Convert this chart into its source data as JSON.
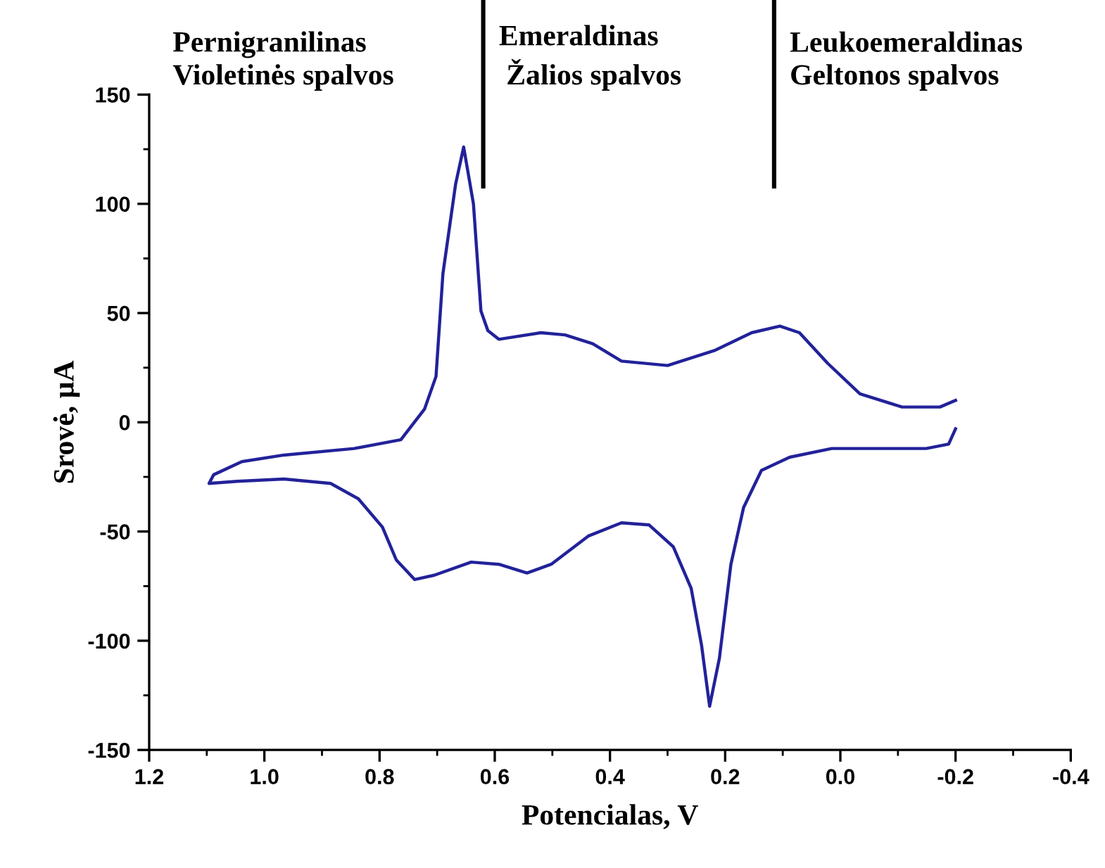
{
  "chart_data": {
    "type": "line",
    "xlabel": "Potencialas, V",
    "ylabel": "Srovė, µA",
    "xlim": [
      1.2,
      -0.4
    ],
    "xticks": [
      {
        "value": 1.2,
        "label": "1.2"
      },
      {
        "value": 1.0,
        "label": "1.0"
      },
      {
        "value": 0.8,
        "label": "0.8"
      },
      {
        "value": 0.6,
        "label": "0.6"
      },
      {
        "value": 0.4,
        "label": "0.4"
      },
      {
        "value": 0.2,
        "label": "0.2"
      },
      {
        "value": 0.0,
        "label": "0.0"
      },
      {
        "value": -0.2,
        "label": "-0.2"
      },
      {
        "value": -0.4,
        "label": "-0.4"
      }
    ],
    "ylim": [
      -150,
      150
    ],
    "yticks": [
      -150,
      -100,
      -50,
      0,
      50,
      100,
      150
    ],
    "grid": false,
    "legend": false,
    "marker": "none",
    "line_style": "solid",
    "series": [
      {
        "color": "#22229a",
        "x": [
          -0.2,
          -0.173,
          -0.107,
          -0.034,
          0.022,
          0.071,
          0.105,
          0.154,
          0.217,
          0.3,
          0.38,
          0.43,
          0.478,
          0.52,
          0.593,
          0.612,
          0.624,
          0.637,
          0.654,
          0.668,
          0.69,
          0.702,
          0.722,
          0.763,
          0.844,
          0.966,
          1.039,
          1.088,
          1.096,
          1.047,
          0.966,
          0.885,
          0.837,
          0.795,
          0.771,
          0.739,
          0.705,
          0.641,
          0.593,
          0.544,
          0.502,
          0.437,
          0.38,
          0.332,
          0.29,
          0.259,
          0.241,
          0.227,
          0.21,
          0.19,
          0.168,
          0.137,
          0.088,
          0.015,
          -0.066,
          -0.149,
          -0.188,
          -0.2
        ],
        "values": [
          10,
          7,
          7,
          13,
          27,
          41,
          44,
          41,
          33,
          26,
          28,
          36,
          40,
          41,
          38,
          42,
          51,
          100,
          126,
          109,
          68,
          21,
          6,
          -8,
          -12,
          -15,
          -18,
          -24,
          -28,
          -27,
          -26,
          -28,
          -35,
          -48,
          -63,
          -72,
          -70,
          -64,
          -65,
          -69,
          -65,
          -52,
          -46,
          -47,
          -57,
          -76,
          -102,
          -130,
          -108,
          -65,
          -39,
          -22,
          -16,
          -12,
          -12,
          -12,
          -10,
          -3
        ]
      }
    ],
    "ref_lines": [
      {
        "axis": "x",
        "value": 0.62,
        "color": "#000000"
      },
      {
        "axis": "x",
        "value": 0.115,
        "color": "#000000"
      }
    ],
    "annotations": [
      "Pernigranilinas\nVioletinės spalvos",
      "Emeraldinas\n Žalios spalvos",
      "Leukoemeraldinas\nGeltonos spalvos"
    ]
  }
}
